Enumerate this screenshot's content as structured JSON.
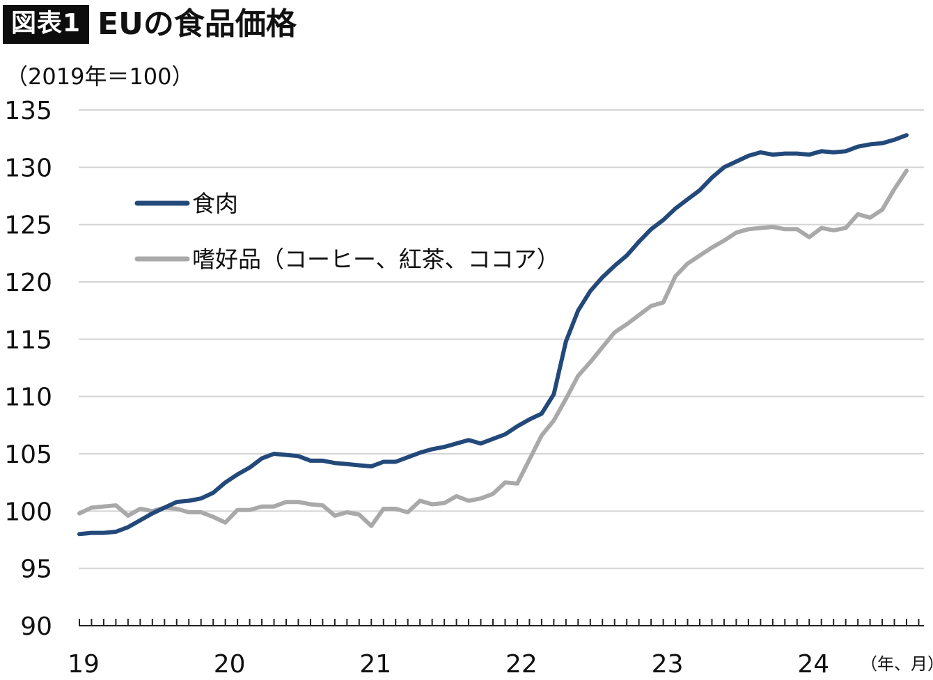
{
  "header": {
    "badge": "図表1",
    "title": "EUの食品価格"
  },
  "chart_data": {
    "type": "line",
    "ylabel": "（2019年＝100）",
    "xlabel": "（年、月）",
    "ylim": [
      90,
      135
    ],
    "yticks": [
      90,
      95,
      100,
      105,
      110,
      115,
      120,
      125,
      130,
      135
    ],
    "xlim": [
      0,
      69
    ],
    "x_year_labels": [
      {
        "label": "19",
        "x": 0
      },
      {
        "label": "20",
        "x": 12
      },
      {
        "label": "21",
        "x": 24
      },
      {
        "label": "22",
        "x": 36
      },
      {
        "label": "23",
        "x": 48
      },
      {
        "label": "24",
        "x": 60
      }
    ],
    "grid": true,
    "legend": "upper-left",
    "colors": {
      "meat": "#23497a",
      "luxury": "#a9a9a9",
      "grid": "#d4d4d4",
      "axis": "#222222"
    },
    "series": [
      {
        "name": "食肉",
        "color": "#23497a",
        "values": [
          98.0,
          98.1,
          98.1,
          98.2,
          98.6,
          99.2,
          99.8,
          100.3,
          100.8,
          100.9,
          101.1,
          101.6,
          102.5,
          103.2,
          103.8,
          104.6,
          105.0,
          104.9,
          104.8,
          104.4,
          104.4,
          104.2,
          104.1,
          104.0,
          103.9,
          104.3,
          104.3,
          104.7,
          105.1,
          105.4,
          105.6,
          105.9,
          106.2,
          105.9,
          106.3,
          106.7,
          107.4,
          108.0,
          108.5,
          110.2,
          114.8,
          117.5,
          119.2,
          120.4,
          121.4,
          122.3,
          123.5,
          124.6,
          125.4,
          126.4,
          127.2,
          128.0,
          129.1,
          130.0,
          130.5,
          131.0,
          131.3,
          131.1,
          131.2,
          131.2,
          131.1,
          131.4,
          131.3,
          131.4,
          131.8,
          132.0,
          132.1,
          132.4,
          132.8
        ]
      },
      {
        "name": "嗜好品（コーヒー、紅茶、ココア）",
        "color": "#a9a9a9",
        "values": [
          99.8,
          100.3,
          100.4,
          100.5,
          99.6,
          100.2,
          100.0,
          100.3,
          100.2,
          99.9,
          99.9,
          99.5,
          99.0,
          100.1,
          100.1,
          100.4,
          100.4,
          100.8,
          100.8,
          100.6,
          100.5,
          99.6,
          99.9,
          99.7,
          98.7,
          100.2,
          100.2,
          99.9,
          100.9,
          100.6,
          100.7,
          101.3,
          100.9,
          101.1,
          101.5,
          102.5,
          102.4,
          104.5,
          106.6,
          107.9,
          109.8,
          111.8,
          113.0,
          114.3,
          115.6,
          116.3,
          117.1,
          117.9,
          118.2,
          120.5,
          121.6,
          122.3,
          123.0,
          123.6,
          124.3,
          124.6,
          124.7,
          124.8,
          124.6,
          124.6,
          123.9,
          124.7,
          124.5,
          124.7,
          125.9,
          125.6,
          126.3,
          128.1,
          129.7
        ]
      }
    ]
  }
}
